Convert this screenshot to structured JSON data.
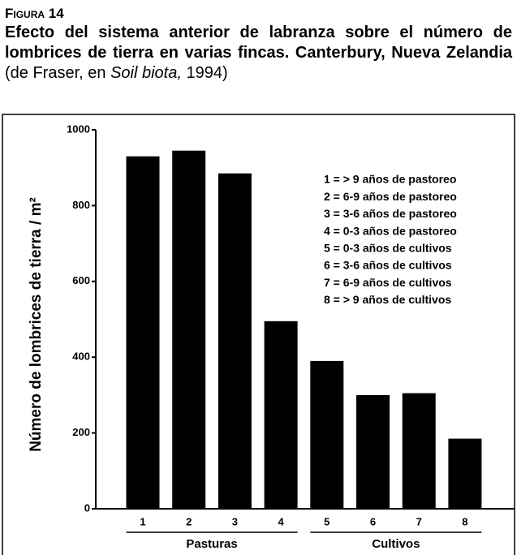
{
  "chart_data": {
    "type": "bar",
    "label": "Figura 14",
    "title": "Efecto del sistema anterior de labranza sobre el número de lombrices de tierra en varias fincas. Canterbury, Nueva Zelandia",
    "source": {
      "before": "(de Fraser, en",
      "work": "Soil biota,",
      "after": "1994)"
    },
    "y_label": "Número de lombrices de tierra / m²",
    "categories": [
      "1",
      "2",
      "3",
      "4",
      "5",
      "6",
      "7",
      "8"
    ],
    "values": [
      930,
      945,
      885,
      495,
      390,
      300,
      305,
      185
    ],
    "color": "#000000",
    "ylim": [
      0,
      1000
    ],
    "yticks": [
      0,
      200,
      400,
      600,
      800,
      1000
    ],
    "groups": [
      {
        "name": "Pasturas",
        "start": 1,
        "end": 4
      },
      {
        "name": "Cultivos",
        "start": 5,
        "end": 8
      }
    ],
    "legend": [
      "1 = > 9 años de pastoreo",
      "2 = 6-9 años de pastoreo",
      "3 = 3-6 años de pastoreo",
      "4 = 0-3 años de pastoreo",
      "5 = 0-3 años de cultivos",
      "6 = 3-6 años de cultivos",
      "7 = 6-9 años de cultivos",
      "8 = > 9 años de cultivos"
    ]
  }
}
